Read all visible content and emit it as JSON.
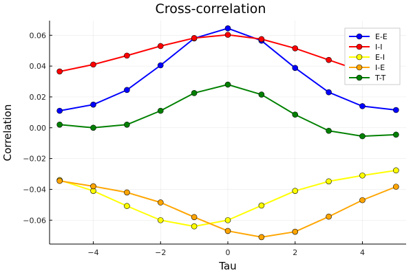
{
  "chart_data": {
    "type": "line",
    "title": "Cross-correlation",
    "xlabel": "Tau",
    "ylabel": "Correlation",
    "xlim": [
      -5.3,
      5.3
    ],
    "ylim": [
      -0.0755,
      0.0695
    ],
    "x_ticks": [
      -4,
      -2,
      0,
      2,
      4
    ],
    "x_tick_labels": [
      "−4",
      "−2",
      "0",
      "2",
      "4"
    ],
    "y_ticks": [
      -0.06,
      -0.04,
      -0.02,
      0.0,
      0.02,
      0.04,
      0.06
    ],
    "y_tick_labels": [
      "−0.06",
      "−0.04",
      "−0.02",
      "0.00",
      "0.02",
      "0.04",
      "0.06"
    ],
    "grid": true,
    "legend_position": "top-right",
    "x": [
      -5,
      -4,
      -3,
      -2,
      -1,
      0,
      1,
      2,
      3,
      4,
      5
    ],
    "series": [
      {
        "name": "E-E",
        "color": "#0000ff",
        "values": [
          0.011,
          0.015,
          0.0245,
          0.0405,
          0.058,
          0.0645,
          0.0565,
          0.0388,
          0.023,
          0.014,
          0.0115
        ]
      },
      {
        "name": "I-I",
        "color": "#ff0000",
        "values": [
          0.0365,
          0.041,
          0.0468,
          0.053,
          0.0582,
          0.0603,
          0.0575,
          0.0515,
          0.044,
          0.0365,
          0.0315
        ]
      },
      {
        "name": "E-I",
        "color": "#ffff00",
        "values": [
          -0.034,
          -0.041,
          -0.0508,
          -0.06,
          -0.064,
          -0.06,
          -0.0505,
          -0.041,
          -0.0348,
          -0.031,
          -0.0277
        ]
      },
      {
        "name": "I-E",
        "color": "#ffa500",
        "values": [
          -0.0345,
          -0.038,
          -0.042,
          -0.0485,
          -0.058,
          -0.067,
          -0.071,
          -0.0675,
          -0.0577,
          -0.047,
          -0.0383
        ]
      },
      {
        "name": "T-T",
        "color": "#008000",
        "values": [
          0.002,
          0.0,
          0.002,
          0.011,
          0.0225,
          0.028,
          0.0215,
          0.0085,
          -0.002,
          -0.0055,
          -0.0045
        ]
      }
    ]
  }
}
